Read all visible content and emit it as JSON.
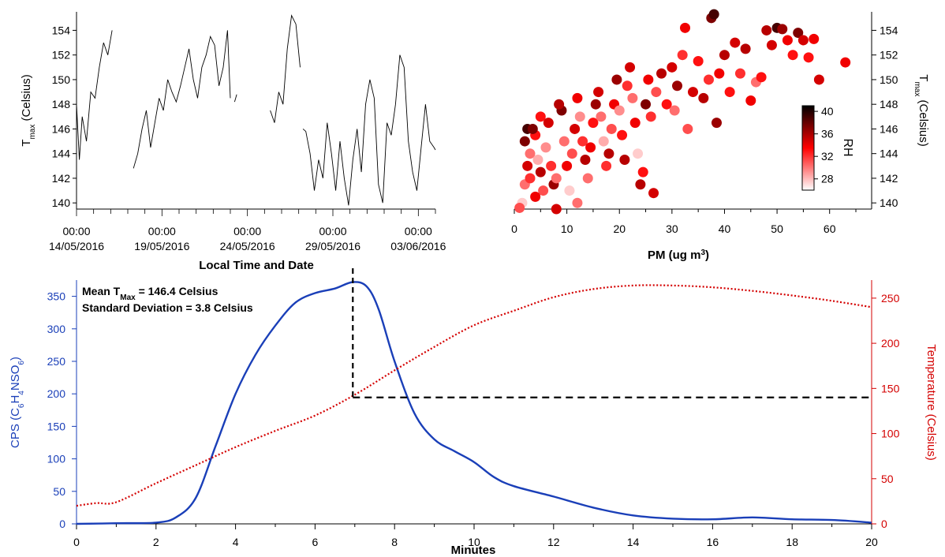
{
  "chart_data": [
    {
      "panel": "top-left",
      "type": "line",
      "ylabel": {
        "main": "T",
        "sub": "max",
        "rest": " (Celsius)"
      },
      "xlabel": "Local Time and Date",
      "ylim": [
        139.5,
        155.5
      ],
      "yticks": [
        140,
        142,
        144,
        146,
        148,
        150,
        152,
        154
      ],
      "xlim": [
        "2016-05-14T00:00",
        "2016-06-04T00:00"
      ],
      "xticks": [
        {
          "time": "00:00",
          "date": "14/05/2016"
        },
        {
          "time": "00:00",
          "date": "19/05/2016"
        },
        {
          "time": "00:00",
          "date": "24/05/2016"
        },
        {
          "time": "00:00",
          "date": "29/05/2016"
        },
        {
          "time": "00:00",
          "date": "03/06/2016"
        }
      ],
      "line_color": "#000000",
      "segments": [
        {
          "x": [
            "2016-05-14T00:00",
            "2016-05-14T04:00",
            "2016-05-14T08:00",
            "2016-05-14T14:00",
            "2016-05-14T20:00",
            "2016-05-15T02:00",
            "2016-05-15T08:00",
            "2016-05-15T14:00",
            "2016-05-15T20:00",
            "2016-05-16T02:00"
          ],
          "y": [
            148,
            143.5,
            147,
            145,
            149,
            148.5,
            151,
            153,
            152,
            154
          ]
        },
        {
          "x": [
            "2016-05-17T08:00",
            "2016-05-17T14:00",
            "2016-05-17T20:00",
            "2016-05-18T02:00",
            "2016-05-18T08:00",
            "2016-05-18T14:00",
            "2016-05-18T20:00",
            "2016-05-19T02:00",
            "2016-05-19T08:00",
            "2016-05-19T14:00",
            "2016-05-19T20:00",
            "2016-05-20T02:00",
            "2016-05-20T08:00",
            "2016-05-20T14:00",
            "2016-05-20T20:00",
            "2016-05-21T02:00",
            "2016-05-21T08:00",
            "2016-05-21T14:00",
            "2016-05-21T20:00",
            "2016-05-22T02:00",
            "2016-05-22T08:00",
            "2016-05-22T14:00",
            "2016-05-22T20:00",
            "2016-05-23T00:00"
          ],
          "y": [
            142.8,
            144,
            146,
            147.5,
            144.5,
            146.5,
            148.5,
            147.5,
            150,
            149,
            148.2,
            149.5,
            151,
            152.5,
            150,
            148.5,
            151,
            152,
            153.5,
            152.8,
            149.5,
            151,
            154,
            148.5
          ]
        },
        {
          "x": [
            "2016-05-23T06:00",
            "2016-05-23T09:00"
          ],
          "y": [
            148.2,
            148.8
          ]
        },
        {
          "x": [
            "2016-05-25T08:00",
            "2016-05-25T14:00",
            "2016-05-25T20:00",
            "2016-05-26T02:00",
            "2016-05-26T08:00",
            "2016-05-26T14:00",
            "2016-05-26T20:00",
            "2016-05-27T02:00"
          ],
          "y": [
            147.5,
            146.5,
            149,
            148,
            152.5,
            155.2,
            154.5,
            151
          ]
        },
        {
          "x": [
            "2016-05-27T06:00",
            "2016-05-27T10:00",
            "2016-05-27T16:00",
            "2016-05-27T22:00",
            "2016-05-28T04:00",
            "2016-05-28T10:00",
            "2016-05-28T16:00",
            "2016-05-28T22:00",
            "2016-05-29T04:00",
            "2016-05-29T10:00",
            "2016-05-29T16:00",
            "2016-05-29T22:00",
            "2016-05-30T04:00",
            "2016-05-30T10:00",
            "2016-05-30T16:00",
            "2016-05-30T22:00",
            "2016-05-31T04:00",
            "2016-05-31T10:00",
            "2016-05-31T16:00",
            "2016-05-31T22:00",
            "2016-06-01T04:00",
            "2016-06-01T10:00",
            "2016-06-01T16:00",
            "2016-06-01T22:00",
            "2016-06-02T04:00",
            "2016-06-02T10:00",
            "2016-06-02T16:00",
            "2016-06-02T22:00",
            "2016-06-03T04:00",
            "2016-06-03T10:00",
            "2016-06-03T16:00",
            "2016-06-03T22:00",
            "2016-06-04T00:00"
          ],
          "y": [
            146,
            145.8,
            144,
            141,
            143.5,
            142,
            146.5,
            144,
            141,
            145,
            142,
            139.8,
            143.5,
            146,
            142.5,
            148,
            150,
            148.5,
            141.5,
            140,
            146.5,
            145.5,
            148,
            152,
            151,
            145,
            142.5,
            141,
            144.5,
            148,
            145,
            144.5,
            144.3
          ]
        }
      ]
    },
    {
      "panel": "top-right",
      "type": "scatter",
      "xlabel": "PM (ug m",
      "xlabel_sup": "3",
      "xlabel_end": ")",
      "ylabel": {
        "main": "T",
        "sub": "max",
        "rest": " (Celsius)"
      },
      "xlim": [
        0,
        68
      ],
      "ylim": [
        139.5,
        155.5
      ],
      "xticks": [
        0,
        10,
        20,
        30,
        40,
        50,
        60
      ],
      "yticks": [
        140,
        142,
        144,
        146,
        148,
        150,
        152,
        154
      ],
      "colorbar": {
        "label": "RH",
        "min": 26,
        "max": 41,
        "ticks": [
          28,
          32,
          36,
          40
        ],
        "colors": [
          "#ffffff",
          "#ff0000",
          "#000000"
        ]
      },
      "points": [
        {
          "x": 1.5,
          "y": 140,
          "rh": 27
        },
        {
          "x": 2,
          "y": 141.5,
          "rh": 30
        },
        {
          "x": 3,
          "y": 142,
          "rh": 32
        },
        {
          "x": 2.5,
          "y": 143,
          "rh": 35
        },
        {
          "x": 3,
          "y": 144,
          "rh": 30
        },
        {
          "x": 2,
          "y": 145,
          "rh": 38
        },
        {
          "x": 2.5,
          "y": 146,
          "rh": 40
        },
        {
          "x": 4,
          "y": 145.5,
          "rh": 33
        },
        {
          "x": 4.5,
          "y": 143.5,
          "rh": 28
        },
        {
          "x": 5,
          "y": 142.5,
          "rh": 36
        },
        {
          "x": 5.5,
          "y": 141,
          "rh": 31
        },
        {
          "x": 4,
          "y": 140.5,
          "rh": 34
        },
        {
          "x": 6,
          "y": 144.5,
          "rh": 29
        },
        {
          "x": 6.5,
          "y": 146.5,
          "rh": 35
        },
        {
          "x": 7,
          "y": 143,
          "rh": 32
        },
        {
          "x": 7.5,
          "y": 141.5,
          "rh": 37
        },
        {
          "x": 3.5,
          "y": 146,
          "rh": 38
        },
        {
          "x": 5,
          "y": 147,
          "rh": 33
        },
        {
          "x": 8,
          "y": 142,
          "rh": 30
        },
        {
          "x": 9,
          "y": 147.5,
          "rh": 38
        },
        {
          "x": 8.5,
          "y": 148,
          "rh": 36
        },
        {
          "x": 9.5,
          "y": 145,
          "rh": 30
        },
        {
          "x": 10,
          "y": 143,
          "rh": 34
        },
        {
          "x": 10.5,
          "y": 141,
          "rh": 27
        },
        {
          "x": 11,
          "y": 144,
          "rh": 31
        },
        {
          "x": 11.5,
          "y": 146,
          "rh": 35
        },
        {
          "x": 12,
          "y": 148.5,
          "rh": 34
        },
        {
          "x": 12.5,
          "y": 147,
          "rh": 29
        },
        {
          "x": 13,
          "y": 145,
          "rh": 32
        },
        {
          "x": 13.5,
          "y": 143.5,
          "rh": 36
        },
        {
          "x": 14,
          "y": 142,
          "rh": 30
        },
        {
          "x": 14.5,
          "y": 144.5,
          "rh": 34
        },
        {
          "x": 15,
          "y": 146.5,
          "rh": 33
        },
        {
          "x": 15.5,
          "y": 148,
          "rh": 37
        },
        {
          "x": 16,
          "y": 149,
          "rh": 35
        },
        {
          "x": 16.5,
          "y": 147,
          "rh": 30
        },
        {
          "x": 17,
          "y": 145,
          "rh": 28
        },
        {
          "x": 17.5,
          "y": 143,
          "rh": 32
        },
        {
          "x": 18,
          "y": 144,
          "rh": 36
        },
        {
          "x": 18.5,
          "y": 146,
          "rh": 31
        },
        {
          "x": 19,
          "y": 148,
          "rh": 34
        },
        {
          "x": 19.5,
          "y": 150,
          "rh": 37
        },
        {
          "x": 20,
          "y": 147.5,
          "rh": 29
        },
        {
          "x": 20.5,
          "y": 145.5,
          "rh": 33
        },
        {
          "x": 21,
          "y": 143.5,
          "rh": 36
        },
        {
          "x": 21.5,
          "y": 149.5,
          "rh": 32
        },
        {
          "x": 22,
          "y": 151,
          "rh": 35
        },
        {
          "x": 22.5,
          "y": 148.5,
          "rh": 30
        },
        {
          "x": 23,
          "y": 146.5,
          "rh": 34
        },
        {
          "x": 23.5,
          "y": 144,
          "rh": 27
        },
        {
          "x": 24,
          "y": 141.5,
          "rh": 36
        },
        {
          "x": 24.5,
          "y": 142.5,
          "rh": 33
        },
        {
          "x": 25,
          "y": 148,
          "rh": 38
        },
        {
          "x": 25.5,
          "y": 150,
          "rh": 34
        },
        {
          "x": 26,
          "y": 147,
          "rh": 32
        },
        {
          "x": 26.5,
          "y": 140.8,
          "rh": 35
        },
        {
          "x": 27,
          "y": 149,
          "rh": 31
        },
        {
          "x": 28,
          "y": 150.5,
          "rh": 36
        },
        {
          "x": 29,
          "y": 148,
          "rh": 33
        },
        {
          "x": 30,
          "y": 151,
          "rh": 35
        },
        {
          "x": 30.5,
          "y": 147.5,
          "rh": 30
        },
        {
          "x": 31,
          "y": 149.5,
          "rh": 37
        },
        {
          "x": 32,
          "y": 152,
          "rh": 32
        },
        {
          "x": 32.5,
          "y": 154.2,
          "rh": 34
        },
        {
          "x": 33,
          "y": 146,
          "rh": 31
        },
        {
          "x": 34,
          "y": 149,
          "rh": 35
        },
        {
          "x": 35,
          "y": 151.5,
          "rh": 33
        },
        {
          "x": 36,
          "y": 148.5,
          "rh": 36
        },
        {
          "x": 37,
          "y": 150,
          "rh": 32
        },
        {
          "x": 37.5,
          "y": 155,
          "rh": 38
        },
        {
          "x": 38,
          "y": 155.3,
          "rh": 40
        },
        {
          "x": 38.5,
          "y": 146.5,
          "rh": 37
        },
        {
          "x": 39,
          "y": 150.5,
          "rh": 34
        },
        {
          "x": 40,
          "y": 152,
          "rh": 36
        },
        {
          "x": 41,
          "y": 149,
          "rh": 33
        },
        {
          "x": 42,
          "y": 153,
          "rh": 35
        },
        {
          "x": 43,
          "y": 150.5,
          "rh": 32
        },
        {
          "x": 44,
          "y": 152.5,
          "rh": 36
        },
        {
          "x": 45,
          "y": 148.3,
          "rh": 34
        },
        {
          "x": 46,
          "y": 149.8,
          "rh": 30
        },
        {
          "x": 47,
          "y": 150.2,
          "rh": 33
        },
        {
          "x": 48,
          "y": 154,
          "rh": 36
        },
        {
          "x": 49,
          "y": 152.8,
          "rh": 35
        },
        {
          "x": 50,
          "y": 154.2,
          "rh": 40
        },
        {
          "x": 51,
          "y": 154.1,
          "rh": 37
        },
        {
          "x": 52,
          "y": 153.2,
          "rh": 34
        },
        {
          "x": 53,
          "y": 152,
          "rh": 33
        },
        {
          "x": 54,
          "y": 153.8,
          "rh": 38
        },
        {
          "x": 55,
          "y": 153.2,
          "rh": 35
        },
        {
          "x": 56,
          "y": 151.8,
          "rh": 33
        },
        {
          "x": 57,
          "y": 153.3,
          "rh": 34
        },
        {
          "x": 58,
          "y": 150,
          "rh": 35
        },
        {
          "x": 63,
          "y": 151.4,
          "rh": 34
        },
        {
          "x": 8,
          "y": 139.5,
          "rh": 35
        },
        {
          "x": 12,
          "y": 140,
          "rh": 30
        },
        {
          "x": 1,
          "y": 139.6,
          "rh": 31
        }
      ]
    },
    {
      "panel": "bottom",
      "type": "line",
      "xlabel": "Minutes",
      "xlim": [
        0,
        20
      ],
      "xticks": [
        0,
        2,
        4,
        6,
        8,
        10,
        12,
        14,
        16,
        18,
        20
      ],
      "ylabel_left": {
        "a": "CPS (C",
        "b": "6",
        "c": "H",
        "d": "4",
        "e": "NSO",
        "f": "6",
        "g": ")"
      },
      "ylim_left": [
        0,
        375
      ],
      "yticks_left": [
        0,
        50,
        100,
        150,
        200,
        250,
        300,
        350
      ],
      "ylabel_right": "Temperature (Celsius)",
      "ylim_right": [
        0,
        270
      ],
      "yticks_right": [
        0,
        50,
        100,
        150,
        200,
        250
      ],
      "left_color": "#1a3fb8",
      "right_color": "#d40000",
      "annotation": {
        "line1_a": "Mean T",
        "line1_sub": "Max",
        "line1_b": " = 146.4 Celsius",
        "line2": "Standard Deviation  = 3.8 Celsius",
        "peak_minute": 6.95,
        "tmax_celsius": 140
      },
      "series": [
        {
          "axis": "left",
          "style": "solid",
          "x": [
            0,
            1,
            2,
            2.5,
            3,
            3.5,
            4,
            4.5,
            5,
            5.5,
            6,
            6.5,
            6.95,
            7.3,
            7.6,
            8,
            8.5,
            9,
            9.5,
            10,
            10.5,
            11,
            12,
            13,
            14,
            15,
            16,
            17,
            18,
            19,
            20
          ],
          "y": [
            0,
            1,
            2,
            10,
            40,
            120,
            200,
            260,
            305,
            340,
            355,
            362,
            372,
            365,
            330,
            250,
            170,
            130,
            112,
            95,
            72,
            58,
            42,
            25,
            13,
            8,
            7,
            10,
            7,
            6,
            2
          ]
        },
        {
          "axis": "right",
          "style": "dotted",
          "x": [
            0,
            0.5,
            1,
            2,
            3,
            4,
            5,
            6,
            7,
            8,
            9,
            10,
            11,
            12,
            13,
            14,
            15,
            16,
            17,
            18,
            19,
            20
          ],
          "y": [
            20,
            23,
            24,
            45,
            65,
            85,
            103,
            120,
            143,
            170,
            196,
            220,
            236,
            251,
            260,
            264,
            264,
            262,
            258,
            253,
            247,
            240
          ]
        }
      ]
    }
  ]
}
